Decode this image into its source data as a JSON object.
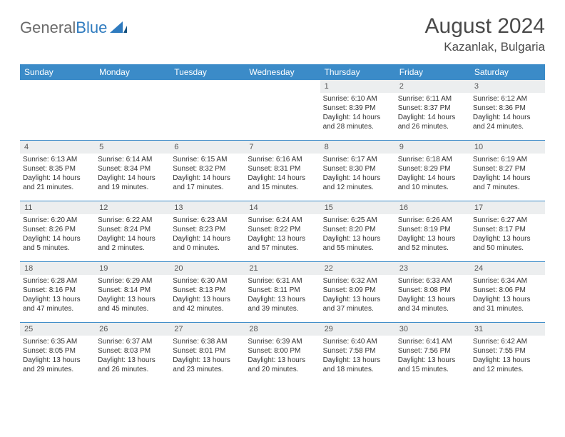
{
  "logo": {
    "text1": "General",
    "text2": "Blue"
  },
  "title": "August 2024",
  "location": "Kazanlak, Bulgaria",
  "colors": {
    "header_bg": "#3b8bc8",
    "daynum_bg": "#eceeef",
    "border": "#3b8bc8",
    "text": "#333333",
    "logo_gray": "#6a6a6a",
    "logo_blue": "#2f7bbf"
  },
  "dow": [
    "Sunday",
    "Monday",
    "Tuesday",
    "Wednesday",
    "Thursday",
    "Friday",
    "Saturday"
  ],
  "weeks": [
    [
      {
        "day": "",
        "sunrise": "",
        "sunset": "",
        "daylight1": "",
        "daylight2": ""
      },
      {
        "day": "",
        "sunrise": "",
        "sunset": "",
        "daylight1": "",
        "daylight2": ""
      },
      {
        "day": "",
        "sunrise": "",
        "sunset": "",
        "daylight1": "",
        "daylight2": ""
      },
      {
        "day": "",
        "sunrise": "",
        "sunset": "",
        "daylight1": "",
        "daylight2": ""
      },
      {
        "day": "1",
        "sunrise": "Sunrise: 6:10 AM",
        "sunset": "Sunset: 8:39 PM",
        "daylight1": "Daylight: 14 hours",
        "daylight2": "and 28 minutes."
      },
      {
        "day": "2",
        "sunrise": "Sunrise: 6:11 AM",
        "sunset": "Sunset: 8:37 PM",
        "daylight1": "Daylight: 14 hours",
        "daylight2": "and 26 minutes."
      },
      {
        "day": "3",
        "sunrise": "Sunrise: 6:12 AM",
        "sunset": "Sunset: 8:36 PM",
        "daylight1": "Daylight: 14 hours",
        "daylight2": "and 24 minutes."
      }
    ],
    [
      {
        "day": "4",
        "sunrise": "Sunrise: 6:13 AM",
        "sunset": "Sunset: 8:35 PM",
        "daylight1": "Daylight: 14 hours",
        "daylight2": "and 21 minutes."
      },
      {
        "day": "5",
        "sunrise": "Sunrise: 6:14 AM",
        "sunset": "Sunset: 8:34 PM",
        "daylight1": "Daylight: 14 hours",
        "daylight2": "and 19 minutes."
      },
      {
        "day": "6",
        "sunrise": "Sunrise: 6:15 AM",
        "sunset": "Sunset: 8:32 PM",
        "daylight1": "Daylight: 14 hours",
        "daylight2": "and 17 minutes."
      },
      {
        "day": "7",
        "sunrise": "Sunrise: 6:16 AM",
        "sunset": "Sunset: 8:31 PM",
        "daylight1": "Daylight: 14 hours",
        "daylight2": "and 15 minutes."
      },
      {
        "day": "8",
        "sunrise": "Sunrise: 6:17 AM",
        "sunset": "Sunset: 8:30 PM",
        "daylight1": "Daylight: 14 hours",
        "daylight2": "and 12 minutes."
      },
      {
        "day": "9",
        "sunrise": "Sunrise: 6:18 AM",
        "sunset": "Sunset: 8:29 PM",
        "daylight1": "Daylight: 14 hours",
        "daylight2": "and 10 minutes."
      },
      {
        "day": "10",
        "sunrise": "Sunrise: 6:19 AM",
        "sunset": "Sunset: 8:27 PM",
        "daylight1": "Daylight: 14 hours",
        "daylight2": "and 7 minutes."
      }
    ],
    [
      {
        "day": "11",
        "sunrise": "Sunrise: 6:20 AM",
        "sunset": "Sunset: 8:26 PM",
        "daylight1": "Daylight: 14 hours",
        "daylight2": "and 5 minutes."
      },
      {
        "day": "12",
        "sunrise": "Sunrise: 6:22 AM",
        "sunset": "Sunset: 8:24 PM",
        "daylight1": "Daylight: 14 hours",
        "daylight2": "and 2 minutes."
      },
      {
        "day": "13",
        "sunrise": "Sunrise: 6:23 AM",
        "sunset": "Sunset: 8:23 PM",
        "daylight1": "Daylight: 14 hours",
        "daylight2": "and 0 minutes."
      },
      {
        "day": "14",
        "sunrise": "Sunrise: 6:24 AM",
        "sunset": "Sunset: 8:22 PM",
        "daylight1": "Daylight: 13 hours",
        "daylight2": "and 57 minutes."
      },
      {
        "day": "15",
        "sunrise": "Sunrise: 6:25 AM",
        "sunset": "Sunset: 8:20 PM",
        "daylight1": "Daylight: 13 hours",
        "daylight2": "and 55 minutes."
      },
      {
        "day": "16",
        "sunrise": "Sunrise: 6:26 AM",
        "sunset": "Sunset: 8:19 PM",
        "daylight1": "Daylight: 13 hours",
        "daylight2": "and 52 minutes."
      },
      {
        "day": "17",
        "sunrise": "Sunrise: 6:27 AM",
        "sunset": "Sunset: 8:17 PM",
        "daylight1": "Daylight: 13 hours",
        "daylight2": "and 50 minutes."
      }
    ],
    [
      {
        "day": "18",
        "sunrise": "Sunrise: 6:28 AM",
        "sunset": "Sunset: 8:16 PM",
        "daylight1": "Daylight: 13 hours",
        "daylight2": "and 47 minutes."
      },
      {
        "day": "19",
        "sunrise": "Sunrise: 6:29 AM",
        "sunset": "Sunset: 8:14 PM",
        "daylight1": "Daylight: 13 hours",
        "daylight2": "and 45 minutes."
      },
      {
        "day": "20",
        "sunrise": "Sunrise: 6:30 AM",
        "sunset": "Sunset: 8:13 PM",
        "daylight1": "Daylight: 13 hours",
        "daylight2": "and 42 minutes."
      },
      {
        "day": "21",
        "sunrise": "Sunrise: 6:31 AM",
        "sunset": "Sunset: 8:11 PM",
        "daylight1": "Daylight: 13 hours",
        "daylight2": "and 39 minutes."
      },
      {
        "day": "22",
        "sunrise": "Sunrise: 6:32 AM",
        "sunset": "Sunset: 8:09 PM",
        "daylight1": "Daylight: 13 hours",
        "daylight2": "and 37 minutes."
      },
      {
        "day": "23",
        "sunrise": "Sunrise: 6:33 AM",
        "sunset": "Sunset: 8:08 PM",
        "daylight1": "Daylight: 13 hours",
        "daylight2": "and 34 minutes."
      },
      {
        "day": "24",
        "sunrise": "Sunrise: 6:34 AM",
        "sunset": "Sunset: 8:06 PM",
        "daylight1": "Daylight: 13 hours",
        "daylight2": "and 31 minutes."
      }
    ],
    [
      {
        "day": "25",
        "sunrise": "Sunrise: 6:35 AM",
        "sunset": "Sunset: 8:05 PM",
        "daylight1": "Daylight: 13 hours",
        "daylight2": "and 29 minutes."
      },
      {
        "day": "26",
        "sunrise": "Sunrise: 6:37 AM",
        "sunset": "Sunset: 8:03 PM",
        "daylight1": "Daylight: 13 hours",
        "daylight2": "and 26 minutes."
      },
      {
        "day": "27",
        "sunrise": "Sunrise: 6:38 AM",
        "sunset": "Sunset: 8:01 PM",
        "daylight1": "Daylight: 13 hours",
        "daylight2": "and 23 minutes."
      },
      {
        "day": "28",
        "sunrise": "Sunrise: 6:39 AM",
        "sunset": "Sunset: 8:00 PM",
        "daylight1": "Daylight: 13 hours",
        "daylight2": "and 20 minutes."
      },
      {
        "day": "29",
        "sunrise": "Sunrise: 6:40 AM",
        "sunset": "Sunset: 7:58 PM",
        "daylight1": "Daylight: 13 hours",
        "daylight2": "and 18 minutes."
      },
      {
        "day": "30",
        "sunrise": "Sunrise: 6:41 AM",
        "sunset": "Sunset: 7:56 PM",
        "daylight1": "Daylight: 13 hours",
        "daylight2": "and 15 minutes."
      },
      {
        "day": "31",
        "sunrise": "Sunrise: 6:42 AM",
        "sunset": "Sunset: 7:55 PM",
        "daylight1": "Daylight: 13 hours",
        "daylight2": "and 12 minutes."
      }
    ]
  ]
}
